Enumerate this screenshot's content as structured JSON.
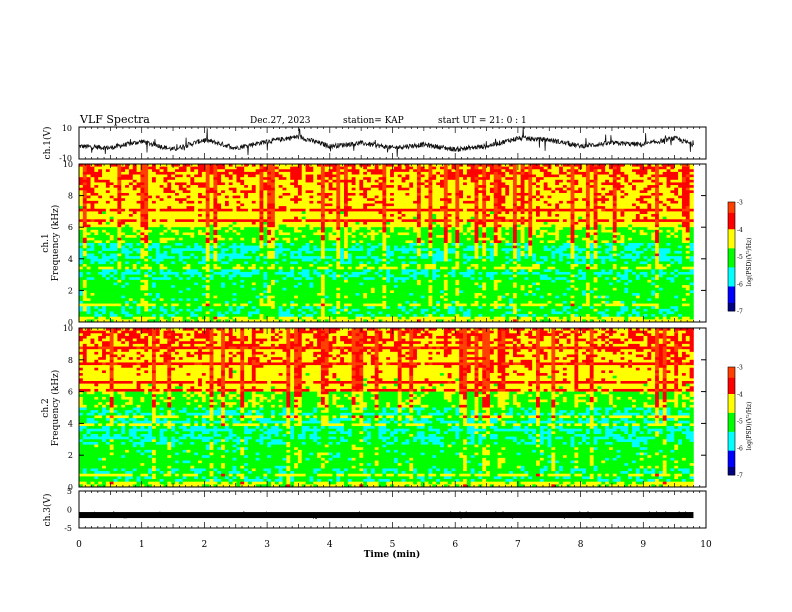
{
  "header": {
    "title": "VLF Spectra",
    "date": "Dec.27, 2023",
    "station": "station= KAP",
    "start_ut": "start  UT =  21: 0  : 1"
  },
  "colors": {
    "axis": "#000000",
    "trace": "#111111",
    "spectrogram_bg": "#5aa0ff",
    "colormap": [
      "#000000",
      "#0000ff",
      "#00ffff",
      "#00ff00",
      "#ffff00",
      "#ff0000",
      "#ffffff"
    ]
  },
  "chart_data": [
    {
      "type": "line",
      "panel": "ch1-waveform",
      "ylabel": "ch.1(V)",
      "ylim": [
        -10,
        10
      ],
      "yticks": [
        "10",
        "-10"
      ],
      "xlim": [
        0,
        10
      ],
      "series": [
        {
          "name": "",
          "x": [
            0,
            0.5,
            1,
            1.5,
            2,
            2.5,
            3,
            3.5,
            4,
            4.5,
            5,
            5.5,
            6,
            6.5,
            7,
            7.5,
            8,
            8.5,
            9,
            9.5,
            9.8
          ],
          "y": [
            -2,
            -3,
            1,
            -4,
            2,
            -3,
            1,
            4,
            -2,
            0,
            -3,
            -1,
            -4,
            -2,
            3,
            2,
            -2,
            0,
            -1,
            3,
            -1
          ]
        }
      ]
    },
    {
      "type": "heatmap",
      "panel": "ch1-spectrogram",
      "ylabel_line1": "ch.1",
      "ylabel_line2": "Frequency (kHz)",
      "ylim": [
        0,
        10
      ],
      "yticks": [
        "0",
        "2",
        "4",
        "6",
        "8",
        "10"
      ],
      "xlim": [
        0,
        10
      ],
      "data_end_min": 9.8,
      "colorbar": {
        "label": "log(PSD)(V²/Hz)",
        "range": [
          -7,
          -3
        ],
        "ticks": [
          "-3",
          "-4",
          "-5",
          "-6",
          "-7"
        ]
      }
    },
    {
      "type": "heatmap",
      "panel": "ch2-spectrogram",
      "ylabel_line1": "ch.2",
      "ylabel_line2": "Frequency (kHz)",
      "ylim": [
        0,
        10
      ],
      "yticks": [
        "0",
        "2",
        "4",
        "6",
        "8",
        "10"
      ],
      "xlim": [
        0,
        10
      ],
      "data_end_min": 9.8,
      "colorbar": {
        "label": "log(PSD)(V²/Hz)",
        "range": [
          -7,
          -3
        ],
        "ticks": [
          "-3",
          "-4",
          "-5",
          "-6",
          "-7"
        ]
      }
    },
    {
      "type": "line",
      "panel": "ch3-waveform",
      "ylabel": "ch.3(V)",
      "ylim": [
        -5,
        5
      ],
      "yticks": [
        "5",
        "0",
        "-5"
      ],
      "xlim": [
        0,
        10
      ],
      "xlabel": "Time (min)",
      "xticks": [
        "0",
        "1",
        "2",
        "3",
        "4",
        "5",
        "6",
        "7",
        "8",
        "9",
        "10"
      ],
      "series": [
        {
          "name": "",
          "x": [
            0,
            9.8
          ],
          "y": [
            -1.5,
            -1.5
          ]
        }
      ]
    }
  ]
}
